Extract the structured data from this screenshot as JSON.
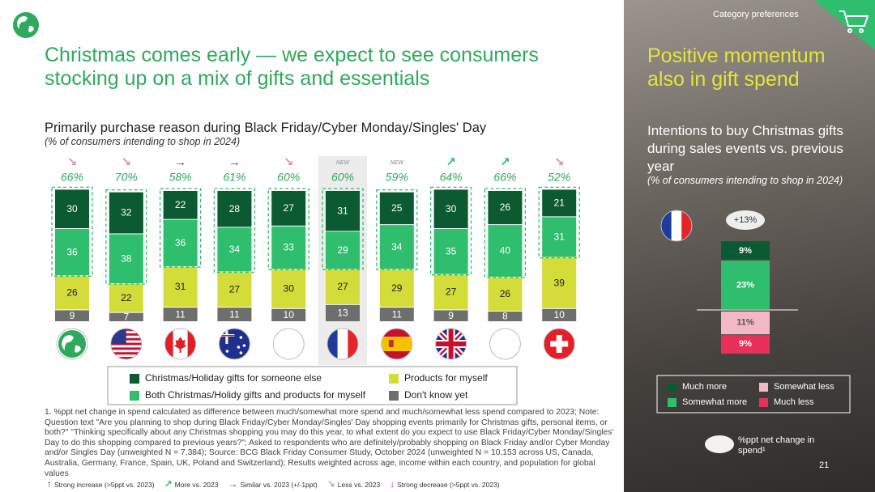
{
  "title": "Christmas comes early — we expect to see consumers stocking up on a mix of gifts and essentials",
  "tag": "Category preferences",
  "page_number": "21",
  "side_title": "Positive momentum also in gift spend",
  "footnote": "1. %ppt net change in spend calculated as difference between much/somewhat more spend and much/somewhat less spend compared to 2023; Note: Question text \"Are you planning to shop during Black Friday/Cyber Monday/Singles' Day shopping events primarily for Christmas gifts, personal items, or both?\" \"Thinking specifically about any Christmas shopping you may do this year, to what extent do you expect to use Black Friday/Cyber Monday/Singles' Day to do this shopping compared to previous years?\"; Asked to respondents who are definitely/probably shopping on Black Friday and/or Cyber Monday and/or Singles Day (unweighted N = 7,384); Source: BCG Black Friday Consumer Study, October 2024 (unweighted N = 10,153 across US, Canada, Australia, Germany, France, Spain, UK, Poland and Switzerland); Results weighted across age, income within each country, and population for global values",
  "trend_legend": [
    {
      "symbol": "↑",
      "text": "Strong increase (>5ppt vs. 2023)",
      "color": "#0b5a32"
    },
    {
      "symbol": "↗",
      "text": "More vs. 2023",
      "color": "#2fbd6e"
    },
    {
      "symbol": "→",
      "text": "Similar vs. 2023 (+/-1ppt)",
      "color": "#555555"
    },
    {
      "symbol": "↘",
      "text": "Less vs. 2023",
      "color": "#e48aa6"
    },
    {
      "symbol": "↓",
      "text": "Strong decrease (>5ppt vs. 2023)",
      "color": "#e0304f"
    }
  ],
  "chart_data": [
    {
      "type": "stacked-bar",
      "title": "Primarily purchase reason during Black Friday/Cyber Monday/Singles' Day",
      "subtitle": "(% of consumers intending to shop in 2024)",
      "trends": [
        "↘",
        "↘",
        "→",
        "→",
        "↘",
        "NEW",
        "NEW",
        "↗",
        "↗",
        "↘"
      ],
      "trend_colors": [
        "#e48aa6",
        "#e48aa6",
        "#555555",
        "#555555",
        "#e48aa6",
        "#aaaaaa",
        "#aaaaaa",
        "#2fbd6e",
        "#2fbd6e",
        "#e48aa6"
      ],
      "top_two": {
        "values": [
          66,
          70,
          58,
          61,
          60,
          60,
          59,
          64,
          66,
          52
        ],
        "value_labels": [
          "66%",
          "70%",
          "58%",
          "61%",
          "60%",
          "60%",
          "59%",
          "64%",
          "66%",
          "52%"
        ]
      },
      "series": [
        {
          "name": "Christmas/Holiday gifts for someone else",
          "color": "#0b5a32",
          "values": [
            30,
            32,
            22,
            28,
            27,
            31,
            25,
            30,
            26,
            21
          ]
        },
        {
          "name": "Both Christmas/Holidy gifts and products for myself",
          "color": "#2fbd6e",
          "values": [
            36,
            38,
            36,
            34,
            33,
            29,
            34,
            35,
            40,
            31
          ]
        },
        {
          "name": "Products for myself",
          "color": "#d4dc3a",
          "values": [
            26,
            22,
            31,
            27,
            30,
            27,
            29,
            27,
            26,
            39
          ]
        },
        {
          "name": "Don't know yet",
          "color": "#6e6e6e",
          "values": [
            9,
            7,
            11,
            11,
            10,
            13,
            11,
            9,
            8,
            10
          ]
        }
      ]
    },
    {
      "type": "diverging-bar",
      "title": "Intentions to buy Christmas gifts during sales events vs. previous year",
      "subtitle": "(% of consumers intending to shop in 2024)",
      "annotation": "+13%",
      "legend_note": "%ppt net change in spend¹",
      "series": [
        {
          "name": "Much more",
          "color": "#0b5a32",
          "side": "up",
          "values": [
            9
          ],
          "value_labels": [
            "9%"
          ]
        },
        {
          "name": "Somewhat more",
          "color": "#2fbd6e",
          "side": "up",
          "values": [
            23
          ],
          "value_labels": [
            "23%"
          ]
        },
        {
          "name": "Somewhat less",
          "color": "#f2b8c6",
          "side": "down",
          "values": [
            11
          ],
          "value_labels": [
            "11%"
          ]
        },
        {
          "name": "Much less",
          "color": "#e8305a",
          "side": "down",
          "values": [
            9
          ],
          "value_labels": [
            "9%"
          ]
        }
      ]
    }
  ]
}
